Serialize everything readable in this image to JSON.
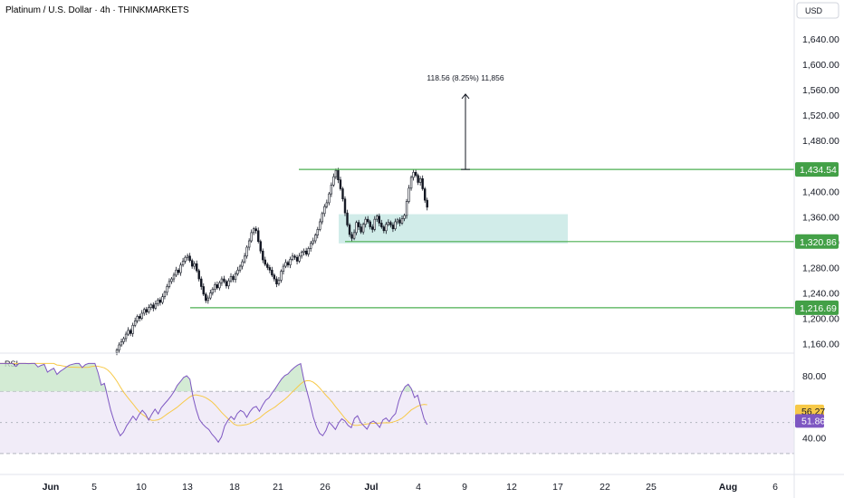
{
  "header": {
    "title": "Platinum / U.S. Dollar · 4h · THINKMARKETS",
    "currency": "USD"
  },
  "colors": {
    "up": "#131722",
    "down": "#131722",
    "level_line": "#4caf50",
    "zone_fill": "#b2dfdb",
    "rsi_line": "#7e57c2",
    "rsi_ma": "#f7c948",
    "rsi_band": "#ede7f6"
  },
  "price_axis": {
    "ticks": [
      "1,640.00",
      "1,600.00",
      "1,560.00",
      "1,520.00",
      "1,480.00",
      "1,400.00",
      "1,360.00",
      "1,320.00",
      "1,280.00",
      "1,240.00",
      "1,200.00",
      "1,160.00"
    ],
    "tick_values": [
      1640,
      1600,
      1560,
      1520,
      1480,
      1400,
      1360,
      1320,
      1280,
      1240,
      1200,
      1160
    ],
    "range": [
      1148,
      1670
    ]
  },
  "levels": [
    {
      "label": "1,434.54",
      "value": 1434.54
    },
    {
      "label": "1,320.86",
      "value": 1320.86
    },
    {
      "label": "1,216.69",
      "value": 1216.69
    }
  ],
  "projection": {
    "label": "118.56 (8.25%) 11,856",
    "from": 1434.54,
    "to": 1553.1
  },
  "zone": {
    "top": 1364,
    "bottom": 1318
  },
  "rsi": {
    "label": "RSI",
    "ticks": [
      "80.00",
      "40.00"
    ],
    "tick_values": [
      80,
      40
    ],
    "upper_band": 70,
    "lower_band": 30,
    "middle": 50,
    "range": [
      20,
      90
    ],
    "value_tag": "51.86",
    "ma_tag": "56.27",
    "value": 51.86,
    "ma_value": 56.27
  },
  "time_axis": {
    "labels": [
      "Jun",
      "5",
      "10",
      "13",
      "18",
      "21",
      "26",
      "Jul",
      "4",
      "9",
      "12",
      "17",
      "22",
      "25",
      "Aug",
      "6"
    ],
    "bold": [
      "Jun",
      "Jul",
      "Aug"
    ]
  },
  "chart_data": {
    "type": "candlestick",
    "title": "Platinum / U.S. Dollar · 4h · THINKMARKETS",
    "ylabel": "USD",
    "ylim": [
      1148,
      1670
    ],
    "closes": [
      1150,
      1158,
      1163,
      1168,
      1175,
      1181,
      1176,
      1189,
      1196,
      1203,
      1200,
      1208,
      1214,
      1210,
      1217,
      1221,
      1216,
      1223,
      1229,
      1225,
      1234,
      1241,
      1250,
      1258,
      1262,
      1268,
      1276,
      1272,
      1284,
      1290,
      1296,
      1298,
      1291,
      1282,
      1286,
      1275,
      1262,
      1250,
      1238,
      1228,
      1232,
      1240,
      1246,
      1253,
      1248,
      1256,
      1262,
      1258,
      1251,
      1259,
      1266,
      1261,
      1270,
      1276,
      1282,
      1289,
      1298,
      1312,
      1322,
      1335,
      1341,
      1338,
      1321,
      1306,
      1292,
      1285,
      1280,
      1276,
      1268,
      1262,
      1254,
      1260,
      1274,
      1282,
      1288,
      1284,
      1293,
      1298,
      1296,
      1290,
      1298,
      1304,
      1306,
      1301,
      1310,
      1318,
      1322,
      1331,
      1340,
      1352,
      1365,
      1376,
      1382,
      1396,
      1410,
      1423,
      1433,
      1418,
      1404,
      1388,
      1366,
      1347,
      1332,
      1326,
      1335,
      1351,
      1344,
      1336,
      1348,
      1356,
      1352,
      1344,
      1340,
      1356,
      1361,
      1350,
      1344,
      1338,
      1348,
      1351,
      1347,
      1341,
      1352,
      1355,
      1350,
      1357,
      1362,
      1384,
      1405,
      1422,
      1430,
      1425,
      1414,
      1420,
      1404,
      1386,
      1375
    ]
  }
}
